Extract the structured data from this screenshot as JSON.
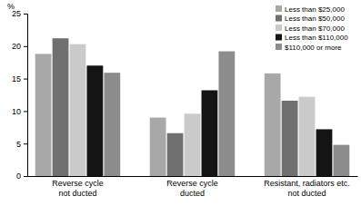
{
  "chart_data": {
    "type": "bar",
    "y_label": "%",
    "categories": [
      "Reverse cycle\nnot ducted",
      "Reverse cycle\nducted",
      "Resistant, radiators etc.\nnot ducted"
    ],
    "series": [
      {
        "name": "Less than $25,000",
        "color": "#a8a8a8",
        "values": [
          18.8,
          9.0,
          15.8
        ]
      },
      {
        "name": "Less than $50,000",
        "color": "#707070",
        "values": [
          21.2,
          6.6,
          11.6
        ]
      },
      {
        "name": "Less than $70,000",
        "color": "#cacaca",
        "values": [
          20.3,
          9.6,
          12.2
        ]
      },
      {
        "name": "Less than $110,000",
        "color": "#141414",
        "values": [
          17.0,
          13.2,
          7.2
        ]
      },
      {
        "name": "$110,000 or more",
        "color": "#8c8c8c",
        "values": [
          15.9,
          19.2,
          4.8
        ]
      }
    ],
    "ylim": [
      0,
      25
    ],
    "yticks": [
      0,
      5,
      10,
      15,
      20,
      25
    ],
    "grid": false,
    "legend": "upper right"
  }
}
